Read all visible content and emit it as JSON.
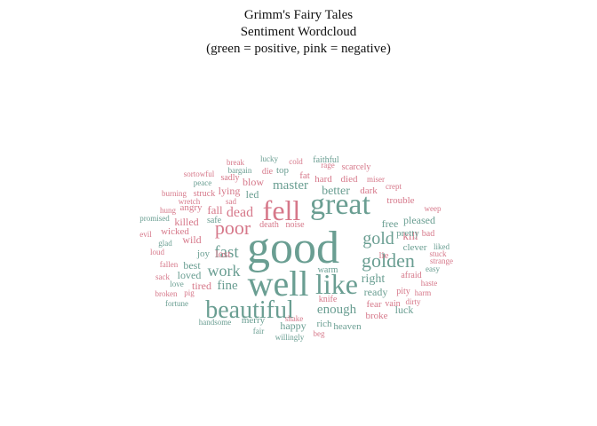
{
  "chart_data": {
    "type": "wordcloud",
    "title": "Grimm's Fairy Tales",
    "subtitle_lines": [
      "Sentiment Wordcloud",
      "(green = positive, pink = negative)"
    ],
    "colors": {
      "positive": "#6a9e92",
      "negative": "#d6788a"
    },
    "words": [
      {
        "text": "good",
        "sentiment": "positive"
      },
      {
        "text": "well",
        "sentiment": "positive"
      },
      {
        "text": "great",
        "sentiment": "positive"
      },
      {
        "text": "like",
        "sentiment": "positive"
      },
      {
        "text": "beautiful",
        "sentiment": "positive"
      },
      {
        "text": "fell",
        "sentiment": "negative"
      },
      {
        "text": "golden",
        "sentiment": "positive"
      },
      {
        "text": "poor",
        "sentiment": "negative"
      },
      {
        "text": "gold",
        "sentiment": "positive"
      },
      {
        "text": "fast",
        "sentiment": "positive"
      },
      {
        "text": "work",
        "sentiment": "positive"
      },
      {
        "text": "dead",
        "sentiment": "negative"
      },
      {
        "text": "fine",
        "sentiment": "positive"
      },
      {
        "text": "enough",
        "sentiment": "positive"
      },
      {
        "text": "master",
        "sentiment": "positive"
      },
      {
        "text": "better",
        "sentiment": "positive"
      },
      {
        "text": "right",
        "sentiment": "positive"
      },
      {
        "text": "ready",
        "sentiment": "positive"
      },
      {
        "text": "luck",
        "sentiment": "positive"
      },
      {
        "text": "kill",
        "sentiment": "negative"
      },
      {
        "text": "fall",
        "sentiment": "negative"
      },
      {
        "text": "lying",
        "sentiment": "negative"
      },
      {
        "text": "blow",
        "sentiment": "negative"
      },
      {
        "text": "led",
        "sentiment": "positive"
      },
      {
        "text": "lost",
        "sentiment": "negative"
      },
      {
        "text": "wild",
        "sentiment": "negative"
      },
      {
        "text": "free",
        "sentiment": "positive"
      },
      {
        "text": "pleased",
        "sentiment": "positive"
      },
      {
        "text": "hard",
        "sentiment": "negative"
      },
      {
        "text": "died",
        "sentiment": "negative"
      },
      {
        "text": "fat",
        "sentiment": "negative"
      },
      {
        "text": "top",
        "sentiment": "positive"
      },
      {
        "text": "killed",
        "sentiment": "negative"
      },
      {
        "text": "best",
        "sentiment": "positive"
      },
      {
        "text": "loved",
        "sentiment": "positive"
      },
      {
        "text": "tired",
        "sentiment": "negative"
      },
      {
        "text": "joy",
        "sentiment": "positive"
      },
      {
        "text": "happy",
        "sentiment": "positive"
      },
      {
        "text": "merry",
        "sentiment": "positive"
      },
      {
        "text": "fear",
        "sentiment": "negative"
      },
      {
        "text": "lie",
        "sentiment": "negative"
      },
      {
        "text": "dark",
        "sentiment": "negative"
      },
      {
        "text": "trouble",
        "sentiment": "negative"
      },
      {
        "text": "pretty",
        "sentiment": "positive"
      },
      {
        "text": "clever",
        "sentiment": "positive"
      },
      {
        "text": "wicked",
        "sentiment": "negative"
      },
      {
        "text": "angry",
        "sentiment": "negative"
      },
      {
        "text": "safe",
        "sentiment": "positive"
      },
      {
        "text": "death",
        "sentiment": "negative"
      },
      {
        "text": "noise",
        "sentiment": "negative"
      },
      {
        "text": "rich",
        "sentiment": "positive"
      },
      {
        "text": "heaven",
        "sentiment": "positive"
      },
      {
        "text": "broke",
        "sentiment": "negative"
      },
      {
        "text": "faithful",
        "sentiment": "positive"
      },
      {
        "text": "scarcely",
        "sentiment": "negative"
      },
      {
        "text": "struck",
        "sentiment": "negative"
      },
      {
        "text": "sadly",
        "sentiment": "negative"
      },
      {
        "text": "die",
        "sentiment": "negative"
      },
      {
        "text": "warm",
        "sentiment": "positive"
      },
      {
        "text": "knife",
        "sentiment": "negative"
      },
      {
        "text": "afraid",
        "sentiment": "negative"
      },
      {
        "text": "vain",
        "sentiment": "negative"
      },
      {
        "text": "pity",
        "sentiment": "negative"
      },
      {
        "text": "bad",
        "sentiment": "negative"
      },
      {
        "text": "liked",
        "sentiment": "positive"
      },
      {
        "text": "stuck",
        "sentiment": "negative"
      },
      {
        "text": "strange",
        "sentiment": "negative"
      },
      {
        "text": "easy",
        "sentiment": "positive"
      },
      {
        "text": "haste",
        "sentiment": "negative"
      },
      {
        "text": "harm",
        "sentiment": "negative"
      },
      {
        "text": "dirty",
        "sentiment": "negative"
      },
      {
        "text": "weep",
        "sentiment": "negative"
      },
      {
        "text": "crept",
        "sentiment": "negative"
      },
      {
        "text": "miser",
        "sentiment": "negative"
      },
      {
        "text": "rage",
        "sentiment": "negative"
      },
      {
        "text": "cold",
        "sentiment": "negative"
      },
      {
        "text": "lucky",
        "sentiment": "positive"
      },
      {
        "text": "break",
        "sentiment": "negative"
      },
      {
        "text": "bargain",
        "sentiment": "positive"
      },
      {
        "text": "sortowful",
        "sentiment": "negative"
      },
      {
        "text": "peace",
        "sentiment": "positive"
      },
      {
        "text": "burning",
        "sentiment": "negative"
      },
      {
        "text": "wretch",
        "sentiment": "negative"
      },
      {
        "text": "sad",
        "sentiment": "negative"
      },
      {
        "text": "hung",
        "sentiment": "negative"
      },
      {
        "text": "promised",
        "sentiment": "positive"
      },
      {
        "text": "evil",
        "sentiment": "negative"
      },
      {
        "text": "glad",
        "sentiment": "positive"
      },
      {
        "text": "loud",
        "sentiment": "negative"
      },
      {
        "text": "fallen",
        "sentiment": "negative"
      },
      {
        "text": "love",
        "sentiment": "positive"
      },
      {
        "text": "sack",
        "sentiment": "negative"
      },
      {
        "text": "broken",
        "sentiment": "negative"
      },
      {
        "text": "pig",
        "sentiment": "negative"
      },
      {
        "text": "fortune",
        "sentiment": "positive"
      },
      {
        "text": "handsome",
        "sentiment": "positive"
      },
      {
        "text": "shake",
        "sentiment": "negative"
      },
      {
        "text": "fair",
        "sentiment": "positive"
      },
      {
        "text": "willingly",
        "sentiment": "positive"
      },
      {
        "text": "beg",
        "sentiment": "negative"
      }
    ]
  }
}
